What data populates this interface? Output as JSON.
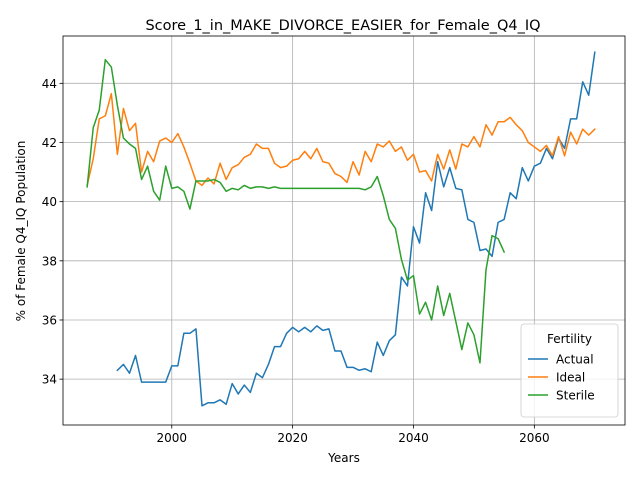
{
  "chart_data": {
    "type": "line",
    "title": "Score_1_in_MAKE_DIVORCE_EASIER_for_Female_Q4_IQ",
    "xlabel": "Years",
    "ylabel": "% of Female Q4_IQ Population",
    "xlim": [
      1982,
      2075
    ],
    "ylim": [
      32.45,
      45.6
    ],
    "xticks": [
      2000,
      2020,
      2040,
      2060
    ],
    "yticks": [
      34,
      36,
      38,
      40,
      42,
      44
    ],
    "grid": true,
    "legend": {
      "title": "Fertility",
      "placement": "lower-right"
    },
    "series": [
      {
        "name": "Actual",
        "color": "#1f77b4",
        "points": [
          [
            1991,
            34.3
          ],
          [
            1992,
            34.5
          ],
          [
            1993,
            34.2
          ],
          [
            1994,
            34.8
          ],
          [
            1995,
            33.9
          ],
          [
            1996,
            33.9
          ],
          [
            1997,
            33.9
          ],
          [
            1998,
            33.9
          ],
          [
            1999,
            33.9
          ],
          [
            2000,
            34.45
          ],
          [
            2001,
            34.45
          ],
          [
            2002,
            35.55
          ],
          [
            2003,
            35.55
          ],
          [
            2004,
            35.7
          ],
          [
            2005,
            33.1
          ],
          [
            2006,
            33.2
          ],
          [
            2007,
            33.2
          ],
          [
            2008,
            33.3
          ],
          [
            2009,
            33.15
          ],
          [
            2010,
            33.85
          ],
          [
            2011,
            33.5
          ],
          [
            2012,
            33.8
          ],
          [
            2013,
            33.55
          ],
          [
            2014,
            34.2
          ],
          [
            2015,
            34.05
          ],
          [
            2016,
            34.5
          ],
          [
            2017,
            35.1
          ],
          [
            2018,
            35.1
          ],
          [
            2019,
            35.55
          ],
          [
            2020,
            35.75
          ],
          [
            2021,
            35.6
          ],
          [
            2022,
            35.75
          ],
          [
            2023,
            35.6
          ],
          [
            2024,
            35.8
          ],
          [
            2025,
            35.65
          ],
          [
            2026,
            35.7
          ],
          [
            2027,
            34.95
          ],
          [
            2028,
            34.95
          ],
          [
            2029,
            34.4
          ],
          [
            2030,
            34.4
          ],
          [
            2031,
            34.3
          ],
          [
            2032,
            34.35
          ],
          [
            2033,
            34.25
          ],
          [
            2034,
            35.25
          ],
          [
            2035,
            34.8
          ],
          [
            2036,
            35.3
          ],
          [
            2037,
            35.5
          ],
          [
            2038,
            37.45
          ],
          [
            2039,
            37.15
          ],
          [
            2040,
            39.15
          ],
          [
            2041,
            38.6
          ],
          [
            2042,
            40.3
          ],
          [
            2043,
            39.7
          ],
          [
            2044,
            41.35
          ],
          [
            2045,
            40.5
          ],
          [
            2046,
            41.15
          ],
          [
            2047,
            40.45
          ],
          [
            2048,
            40.4
          ],
          [
            2049,
            39.4
          ],
          [
            2050,
            39.3
          ],
          [
            2051,
            38.35
          ],
          [
            2052,
            38.4
          ],
          [
            2053,
            38.15
          ],
          [
            2054,
            39.3
          ],
          [
            2055,
            39.4
          ],
          [
            2056,
            40.3
          ],
          [
            2057,
            40.1
          ],
          [
            2058,
            41.15
          ],
          [
            2059,
            40.7
          ],
          [
            2060,
            41.2
          ],
          [
            2061,
            41.3
          ],
          [
            2062,
            41.8
          ],
          [
            2063,
            41.45
          ],
          [
            2064,
            42.15
          ],
          [
            2065,
            41.8
          ],
          [
            2066,
            42.8
          ],
          [
            2067,
            42.8
          ],
          [
            2068,
            44.05
          ],
          [
            2069,
            43.6
          ],
          [
            2070,
            45.05
          ]
        ]
      },
      {
        "name": "Ideal",
        "color": "#ff7f0e",
        "points": [
          [
            1986,
            40.55
          ],
          [
            1987,
            41.45
          ],
          [
            1988,
            42.8
          ],
          [
            1989,
            42.9
          ],
          [
            1990,
            43.65
          ],
          [
            1991,
            41.6
          ],
          [
            1992,
            43.15
          ],
          [
            1993,
            42.4
          ],
          [
            1994,
            42.65
          ],
          [
            1995,
            41.0
          ],
          [
            1996,
            41.7
          ],
          [
            1997,
            41.35
          ],
          [
            1998,
            42.05
          ],
          [
            1999,
            42.15
          ],
          [
            2000,
            42.0
          ],
          [
            2001,
            42.3
          ],
          [
            2002,
            41.85
          ],
          [
            2003,
            41.3
          ],
          [
            2004,
            40.7
          ],
          [
            2005,
            40.55
          ],
          [
            2006,
            40.8
          ],
          [
            2007,
            40.6
          ],
          [
            2008,
            41.3
          ],
          [
            2009,
            40.75
          ],
          [
            2010,
            41.15
          ],
          [
            2011,
            41.25
          ],
          [
            2012,
            41.5
          ],
          [
            2013,
            41.6
          ],
          [
            2014,
            41.95
          ],
          [
            2015,
            41.8
          ],
          [
            2016,
            41.8
          ],
          [
            2017,
            41.3
          ],
          [
            2018,
            41.15
          ],
          [
            2019,
            41.2
          ],
          [
            2020,
            41.4
          ],
          [
            2021,
            41.45
          ],
          [
            2022,
            41.7
          ],
          [
            2023,
            41.45
          ],
          [
            2024,
            41.8
          ],
          [
            2025,
            41.35
          ],
          [
            2026,
            41.3
          ],
          [
            2027,
            40.95
          ],
          [
            2028,
            40.85
          ],
          [
            2029,
            40.65
          ],
          [
            2030,
            41.35
          ],
          [
            2031,
            40.9
          ],
          [
            2032,
            41.7
          ],
          [
            2033,
            41.35
          ],
          [
            2034,
            41.95
          ],
          [
            2035,
            41.85
          ],
          [
            2036,
            42.05
          ],
          [
            2037,
            41.7
          ],
          [
            2038,
            41.85
          ],
          [
            2039,
            41.4
          ],
          [
            2040,
            41.6
          ],
          [
            2041,
            41.0
          ],
          [
            2042,
            41.05
          ],
          [
            2043,
            40.7
          ],
          [
            2044,
            41.6
          ],
          [
            2045,
            41.1
          ],
          [
            2046,
            41.75
          ],
          [
            2047,
            41.1
          ],
          [
            2048,
            41.95
          ],
          [
            2049,
            41.85
          ],
          [
            2050,
            42.2
          ],
          [
            2051,
            41.85
          ],
          [
            2052,
            42.6
          ],
          [
            2053,
            42.25
          ],
          [
            2054,
            42.7
          ],
          [
            2055,
            42.7
          ],
          [
            2056,
            42.85
          ],
          [
            2057,
            42.6
          ],
          [
            2058,
            42.4
          ],
          [
            2059,
            42.0
          ],
          [
            2060,
            41.85
          ],
          [
            2061,
            41.7
          ],
          [
            2062,
            41.9
          ],
          [
            2063,
            41.55
          ],
          [
            2064,
            42.2
          ],
          [
            2065,
            41.55
          ],
          [
            2066,
            42.35
          ],
          [
            2067,
            41.95
          ],
          [
            2068,
            42.45
          ],
          [
            2069,
            42.25
          ],
          [
            2070,
            42.45
          ]
        ]
      },
      {
        "name": "Sterile",
        "color": "#2ca02c",
        "points": [
          [
            1986,
            40.5
          ],
          [
            1987,
            42.5
          ],
          [
            1988,
            43.1
          ],
          [
            1989,
            44.8
          ],
          [
            1990,
            44.55
          ],
          [
            1991,
            43.25
          ],
          [
            1992,
            42.15
          ],
          [
            1993,
            41.95
          ],
          [
            1994,
            41.8
          ],
          [
            1995,
            40.75
          ],
          [
            1996,
            41.2
          ],
          [
            1997,
            40.35
          ],
          [
            1998,
            40.05
          ],
          [
            1999,
            41.2
          ],
          [
            2000,
            40.45
          ],
          [
            2001,
            40.5
          ],
          [
            2002,
            40.35
          ],
          [
            2003,
            39.75
          ],
          [
            2004,
            40.7
          ],
          [
            2005,
            40.7
          ],
          [
            2006,
            40.7
          ],
          [
            2007,
            40.75
          ],
          [
            2008,
            40.65
          ],
          [
            2009,
            40.35
          ],
          [
            2010,
            40.45
          ],
          [
            2011,
            40.4
          ],
          [
            2012,
            40.55
          ],
          [
            2013,
            40.45
          ],
          [
            2014,
            40.5
          ],
          [
            2015,
            40.5
          ],
          [
            2016,
            40.45
          ],
          [
            2017,
            40.5
          ],
          [
            2018,
            40.45
          ],
          [
            2019,
            40.45
          ],
          [
            2020,
            40.45
          ],
          [
            2021,
            40.45
          ],
          [
            2022,
            40.45
          ],
          [
            2023,
            40.45
          ],
          [
            2024,
            40.45
          ],
          [
            2025,
            40.45
          ],
          [
            2026,
            40.45
          ],
          [
            2027,
            40.45
          ],
          [
            2028,
            40.45
          ],
          [
            2029,
            40.45
          ],
          [
            2030,
            40.45
          ],
          [
            2031,
            40.45
          ],
          [
            2032,
            40.4
          ],
          [
            2033,
            40.5
          ],
          [
            2034,
            40.85
          ],
          [
            2035,
            40.2
          ],
          [
            2036,
            39.4
          ],
          [
            2037,
            39.1
          ],
          [
            2038,
            38.05
          ],
          [
            2039,
            37.35
          ],
          [
            2040,
            37.5
          ],
          [
            2041,
            36.2
          ],
          [
            2042,
            36.6
          ],
          [
            2043,
            36.0
          ],
          [
            2044,
            37.15
          ],
          [
            2045,
            36.15
          ],
          [
            2046,
            36.9
          ],
          [
            2047,
            35.95
          ],
          [
            2048,
            35.0
          ],
          [
            2049,
            35.9
          ],
          [
            2050,
            35.5
          ],
          [
            2051,
            34.55
          ],
          [
            2052,
            37.7
          ],
          [
            2053,
            38.85
          ],
          [
            2054,
            38.75
          ],
          [
            2055,
            38.3
          ]
        ]
      }
    ]
  }
}
